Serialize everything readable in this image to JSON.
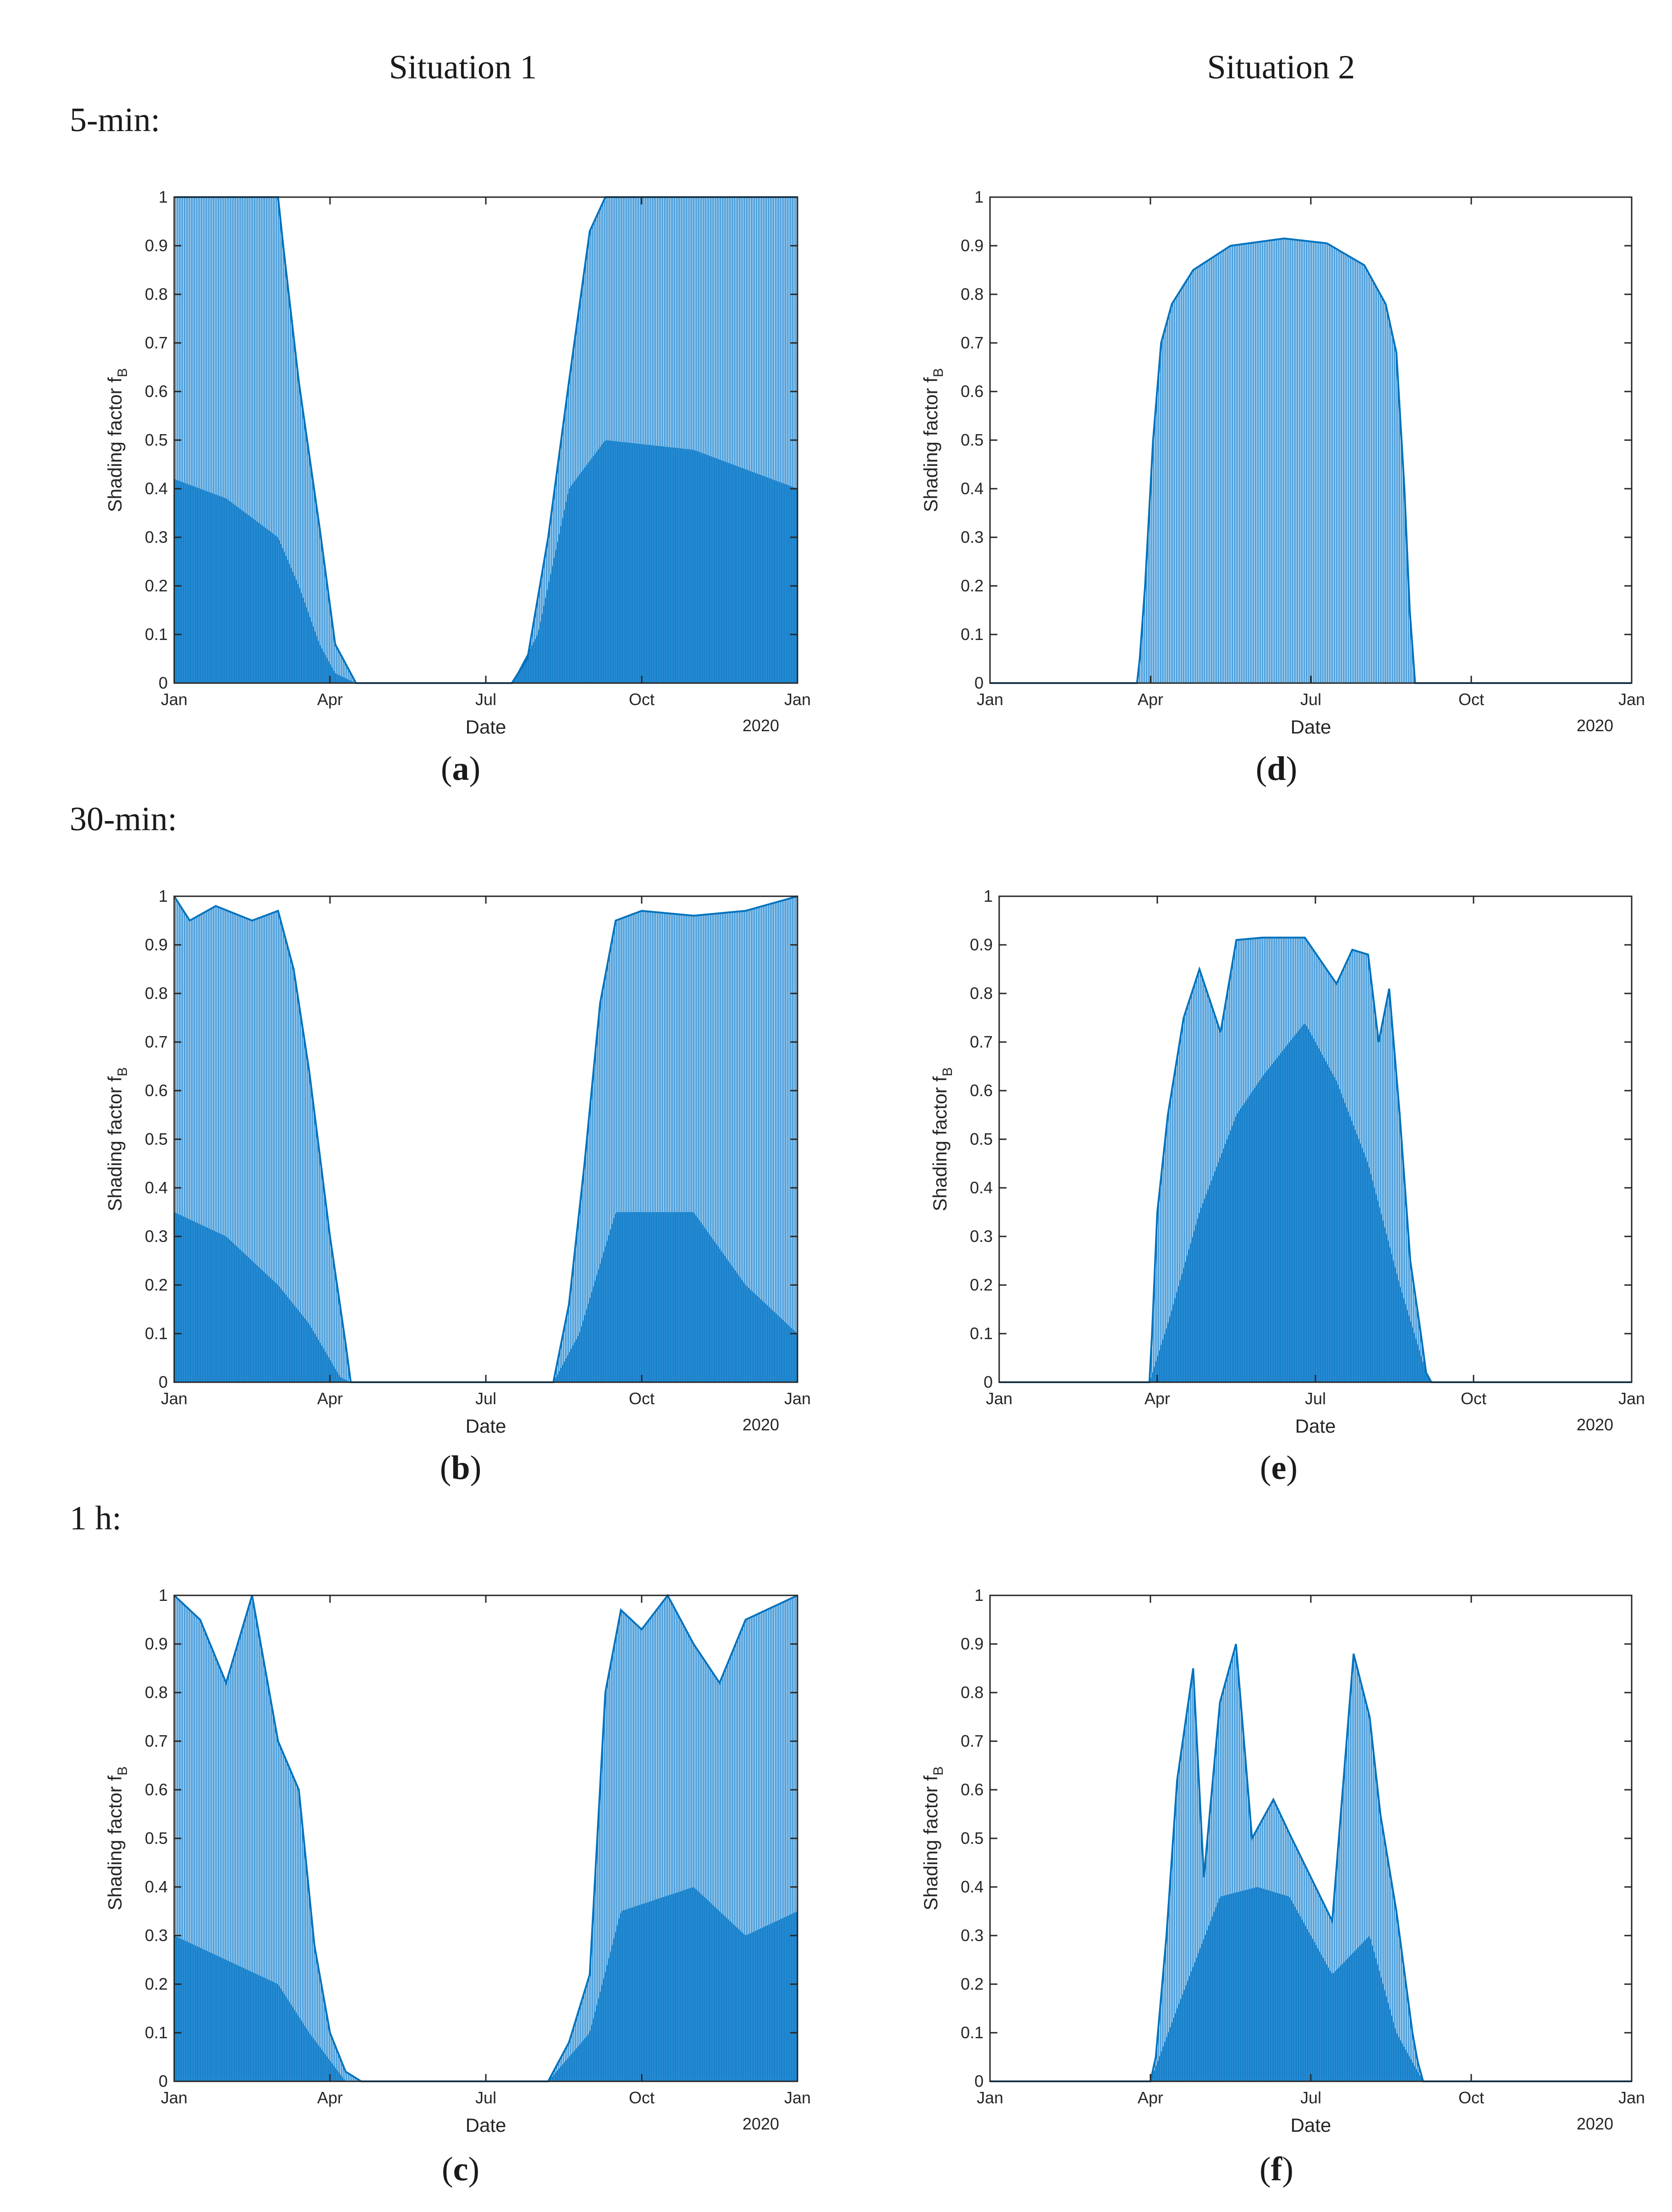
{
  "figure": {
    "column_headers": [
      "Situation 1",
      "Situation 2"
    ],
    "row_headers": [
      "5-min:",
      "30-min:",
      "1 h:"
    ],
    "captions": [
      "a",
      "b",
      "c",
      "d",
      "e",
      "f"
    ]
  },
  "colors": {
    "series": "#0072BD",
    "series_light": "#2E8FD6",
    "axis": "#262626"
  },
  "chart_data": [
    {
      "id": "a",
      "type": "area",
      "title": "",
      "xlabel": "Date",
      "ylabel": "Shading factor f",
      "ylabel_subscript": "B",
      "x_ticklabels": [
        "Jan",
        "Apr",
        "Jul",
        "Oct",
        "Jan"
      ],
      "x_secondary_label": "2020",
      "y_ticklabels": [
        "0",
        "0.1",
        "0.2",
        "0.3",
        "0.4",
        "0.5",
        "0.6",
        "0.7",
        "0.8",
        "0.9",
        "1"
      ],
      "ylim": [
        0,
        1
      ],
      "xlim": [
        0,
        12
      ],
      "series": [
        {
          "envelope": [
            [
              0,
              1
            ],
            [
              2,
              1
            ],
            [
              2.1,
              0.9
            ],
            [
              2.4,
              0.62
            ],
            [
              2.8,
              0.32
            ],
            [
              3.1,
              0.08
            ],
            [
              3.5,
              0
            ],
            [
              6.5,
              0
            ],
            [
              6.8,
              0.05
            ],
            [
              7.2,
              0.3
            ],
            [
              7.6,
              0.62
            ],
            [
              8,
              0.93
            ],
            [
              8.3,
              1
            ],
            [
              12,
              1
            ]
          ],
          "inner": [
            [
              0,
              0.42
            ],
            [
              1,
              0.38
            ],
            [
              2,
              0.3
            ],
            [
              2.4,
              0.2
            ],
            [
              2.8,
              0.08
            ],
            [
              3.1,
              0.02
            ],
            [
              3.5,
              0
            ],
            [
              6.5,
              0
            ],
            [
              7,
              0.1
            ],
            [
              7.6,
              0.4
            ],
            [
              8.3,
              0.5
            ],
            [
              10,
              0.48
            ],
            [
              12,
              0.4
            ]
          ]
        }
      ]
    },
    {
      "id": "b",
      "type": "area",
      "title": "",
      "xlabel": "Date",
      "ylabel": "Shading factor f",
      "ylabel_subscript": "B",
      "x_ticklabels": [
        "Jan",
        "Apr",
        "Jul",
        "Oct",
        "Jan"
      ],
      "x_secondary_label": "2020",
      "y_ticklabels": [
        "0",
        "0.1",
        "0.2",
        "0.3",
        "0.4",
        "0.5",
        "0.6",
        "0.7",
        "0.8",
        "0.9",
        "1"
      ],
      "ylim": [
        0,
        1
      ],
      "xlim": [
        0,
        12
      ],
      "series": [
        {
          "envelope": [
            [
              0,
              1
            ],
            [
              0.3,
              0.95
            ],
            [
              0.8,
              0.98
            ],
            [
              1.5,
              0.95
            ],
            [
              2,
              0.97
            ],
            [
              2.3,
              0.85
            ],
            [
              2.6,
              0.64
            ],
            [
              3,
              0.3
            ],
            [
              3.3,
              0.08
            ],
            [
              3.4,
              0
            ],
            [
              7.3,
              0
            ],
            [
              7.6,
              0.16
            ],
            [
              7.9,
              0.45
            ],
            [
              8.2,
              0.78
            ],
            [
              8.5,
              0.95
            ],
            [
              9,
              0.97
            ],
            [
              10,
              0.96
            ],
            [
              11,
              0.97
            ],
            [
              12,
              1
            ]
          ],
          "inner": [
            [
              0,
              0.35
            ],
            [
              1,
              0.3
            ],
            [
              2,
              0.2
            ],
            [
              2.6,
              0.12
            ],
            [
              3.2,
              0.01
            ],
            [
              3.4,
              0
            ],
            [
              7.3,
              0
            ],
            [
              7.8,
              0.1
            ],
            [
              8.5,
              0.35
            ],
            [
              10,
              0.35
            ],
            [
              11,
              0.2
            ],
            [
              12,
              0.1
            ]
          ]
        }
      ]
    },
    {
      "id": "c",
      "type": "area",
      "title": "",
      "xlabel": "Date",
      "ylabel": "Shading factor f",
      "ylabel_subscript": "B",
      "x_ticklabels": [
        "Jan",
        "Apr",
        "Jul",
        "Oct",
        "Jan"
      ],
      "x_secondary_label": "2020",
      "y_ticklabels": [
        "0",
        "0.1",
        "0.2",
        "0.3",
        "0.4",
        "0.5",
        "0.6",
        "0.7",
        "0.8",
        "0.9",
        "1"
      ],
      "ylim": [
        0,
        1
      ],
      "xlim": [
        0,
        12
      ],
      "series": [
        {
          "envelope": [
            [
              0,
              1
            ],
            [
              0.5,
              0.95
            ],
            [
              1,
              0.82
            ],
            [
              1.5,
              1
            ],
            [
              2,
              0.7
            ],
            [
              2.4,
              0.6
            ],
            [
              2.7,
              0.28
            ],
            [
              3,
              0.1
            ],
            [
              3.3,
              0.02
            ],
            [
              3.6,
              0
            ],
            [
              7.2,
              0
            ],
            [
              7.6,
              0.08
            ],
            [
              8,
              0.22
            ],
            [
              8.3,
              0.8
            ],
            [
              8.6,
              0.97
            ],
            [
              9,
              0.93
            ],
            [
              9.5,
              1
            ],
            [
              10,
              0.9
            ],
            [
              10.5,
              0.82
            ],
            [
              11,
              0.95
            ],
            [
              12,
              1
            ]
          ],
          "inner": [
            [
              0,
              0.3
            ],
            [
              1,
              0.25
            ],
            [
              2,
              0.2
            ],
            [
              2.6,
              0.1
            ],
            [
              3.3,
              0
            ],
            [
              7.2,
              0
            ],
            [
              8,
              0.1
            ],
            [
              8.6,
              0.35
            ],
            [
              10,
              0.4
            ],
            [
              11,
              0.3
            ],
            [
              12,
              0.35
            ]
          ]
        }
      ]
    },
    {
      "id": "d",
      "type": "area",
      "title": "",
      "xlabel": "Date",
      "ylabel": "Shading factor f",
      "ylabel_subscript": "B",
      "x_ticklabels": [
        "Jan",
        "Apr",
        "Jul",
        "Oct",
        "Jan"
      ],
      "x_secondary_label": "2020",
      "y_ticklabels": [
        "0",
        "0.1",
        "0.2",
        "0.3",
        "0.4",
        "0.5",
        "0.6",
        "0.7",
        "0.8",
        "0.9",
        "1"
      ],
      "ylim": [
        0,
        1
      ],
      "xlim": [
        0,
        12
      ],
      "series": [
        {
          "envelope": [
            [
              0,
              0
            ],
            [
              2.75,
              0
            ],
            [
              2.8,
              0.05
            ],
            [
              2.9,
              0.2
            ],
            [
              3.05,
              0.5
            ],
            [
              3.2,
              0.7
            ],
            [
              3.4,
              0.78
            ],
            [
              3.8,
              0.85
            ],
            [
              4.5,
              0.9
            ],
            [
              5.5,
              0.915
            ],
            [
              6.3,
              0.905
            ],
            [
              7,
              0.86
            ],
            [
              7.4,
              0.78
            ],
            [
              7.6,
              0.68
            ],
            [
              7.75,
              0.4
            ],
            [
              7.85,
              0.15
            ],
            [
              7.95,
              0
            ],
            [
              12,
              0
            ]
          ],
          "inner": [
            [
              0,
              0
            ],
            [
              12,
              0
            ]
          ]
        }
      ]
    },
    {
      "id": "e",
      "type": "area",
      "title": "",
      "xlabel": "Date",
      "ylabel": "Shading factor f",
      "ylabel_subscript": "B",
      "x_ticklabels": [
        "Jan",
        "Apr",
        "Jul",
        "Oct",
        "Jan"
      ],
      "x_secondary_label": "2020",
      "y_ticklabels": [
        "0",
        "0.1",
        "0.2",
        "0.3",
        "0.4",
        "0.5",
        "0.6",
        "0.7",
        "0.8",
        "0.9",
        "1"
      ],
      "ylim": [
        0,
        1
      ],
      "xlim": [
        0,
        12
      ],
      "series": [
        {
          "envelope": [
            [
              0,
              0
            ],
            [
              2.85,
              0
            ],
            [
              2.9,
              0.1
            ],
            [
              3,
              0.35
            ],
            [
              3.2,
              0.55
            ],
            [
              3.5,
              0.75
            ],
            [
              3.8,
              0.85
            ],
            [
              4.2,
              0.72
            ],
            [
              4.5,
              0.91
            ],
            [
              5,
              0.915
            ],
            [
              5.8,
              0.915
            ],
            [
              6.4,
              0.82
            ],
            [
              6.7,
              0.89
            ],
            [
              7,
              0.88
            ],
            [
              7.2,
              0.7
            ],
            [
              7.4,
              0.81
            ],
            [
              7.6,
              0.55
            ],
            [
              7.8,
              0.25
            ],
            [
              8.0,
              0.1
            ],
            [
              8.1,
              0.02
            ],
            [
              8.2,
              0
            ],
            [
              12,
              0
            ]
          ],
          "inner": [
            [
              0,
              0
            ],
            [
              2.85,
              0
            ],
            [
              3.2,
              0.12
            ],
            [
              3.8,
              0.35
            ],
            [
              4.5,
              0.55
            ],
            [
              5,
              0.63
            ],
            [
              5.8,
              0.74
            ],
            [
              6.4,
              0.62
            ],
            [
              7,
              0.45
            ],
            [
              7.6,
              0.2
            ],
            [
              8.1,
              0.02
            ],
            [
              8.2,
              0
            ],
            [
              12,
              0
            ]
          ]
        }
      ]
    },
    {
      "id": "f",
      "type": "area",
      "title": "",
      "xlabel": "Date",
      "ylabel": "Shading factor f",
      "ylabel_subscript": "B",
      "x_ticklabels": [
        "Jan",
        "Apr",
        "Jul",
        "Oct",
        "Jan"
      ],
      "x_secondary_label": "2020",
      "y_ticklabels": [
        "0",
        "0.1",
        "0.2",
        "0.3",
        "0.4",
        "0.5",
        "0.6",
        "0.7",
        "0.8",
        "0.9",
        "1"
      ],
      "ylim": [
        0,
        1
      ],
      "xlim": [
        0,
        12
      ],
      "series": [
        {
          "envelope": [
            [
              0,
              0
            ],
            [
              3.0,
              0
            ],
            [
              3.1,
              0.05
            ],
            [
              3.3,
              0.3
            ],
            [
              3.5,
              0.62
            ],
            [
              3.8,
              0.85
            ],
            [
              4.0,
              0.42
            ],
            [
              4.3,
              0.78
            ],
            [
              4.6,
              0.9
            ],
            [
              4.9,
              0.5
            ],
            [
              5.3,
              0.58
            ],
            [
              5.6,
              0.51
            ],
            [
              6.0,
              0.42
            ],
            [
              6.4,
              0.33
            ],
            [
              6.8,
              0.88
            ],
            [
              7.1,
              0.75
            ],
            [
              7.3,
              0.55
            ],
            [
              7.6,
              0.35
            ],
            [
              7.9,
              0.1
            ],
            [
              8.0,
              0.04
            ],
            [
              8.1,
              0
            ],
            [
              12,
              0
            ]
          ],
          "inner": [
            [
              0,
              0
            ],
            [
              3.0,
              0
            ],
            [
              3.5,
              0.15
            ],
            [
              4.3,
              0.38
            ],
            [
              5,
              0.4
            ],
            [
              5.6,
              0.38
            ],
            [
              6.4,
              0.22
            ],
            [
              7.1,
              0.3
            ],
            [
              7.6,
              0.1
            ],
            [
              8.1,
              0
            ],
            [
              12,
              0
            ]
          ]
        }
      ]
    }
  ]
}
